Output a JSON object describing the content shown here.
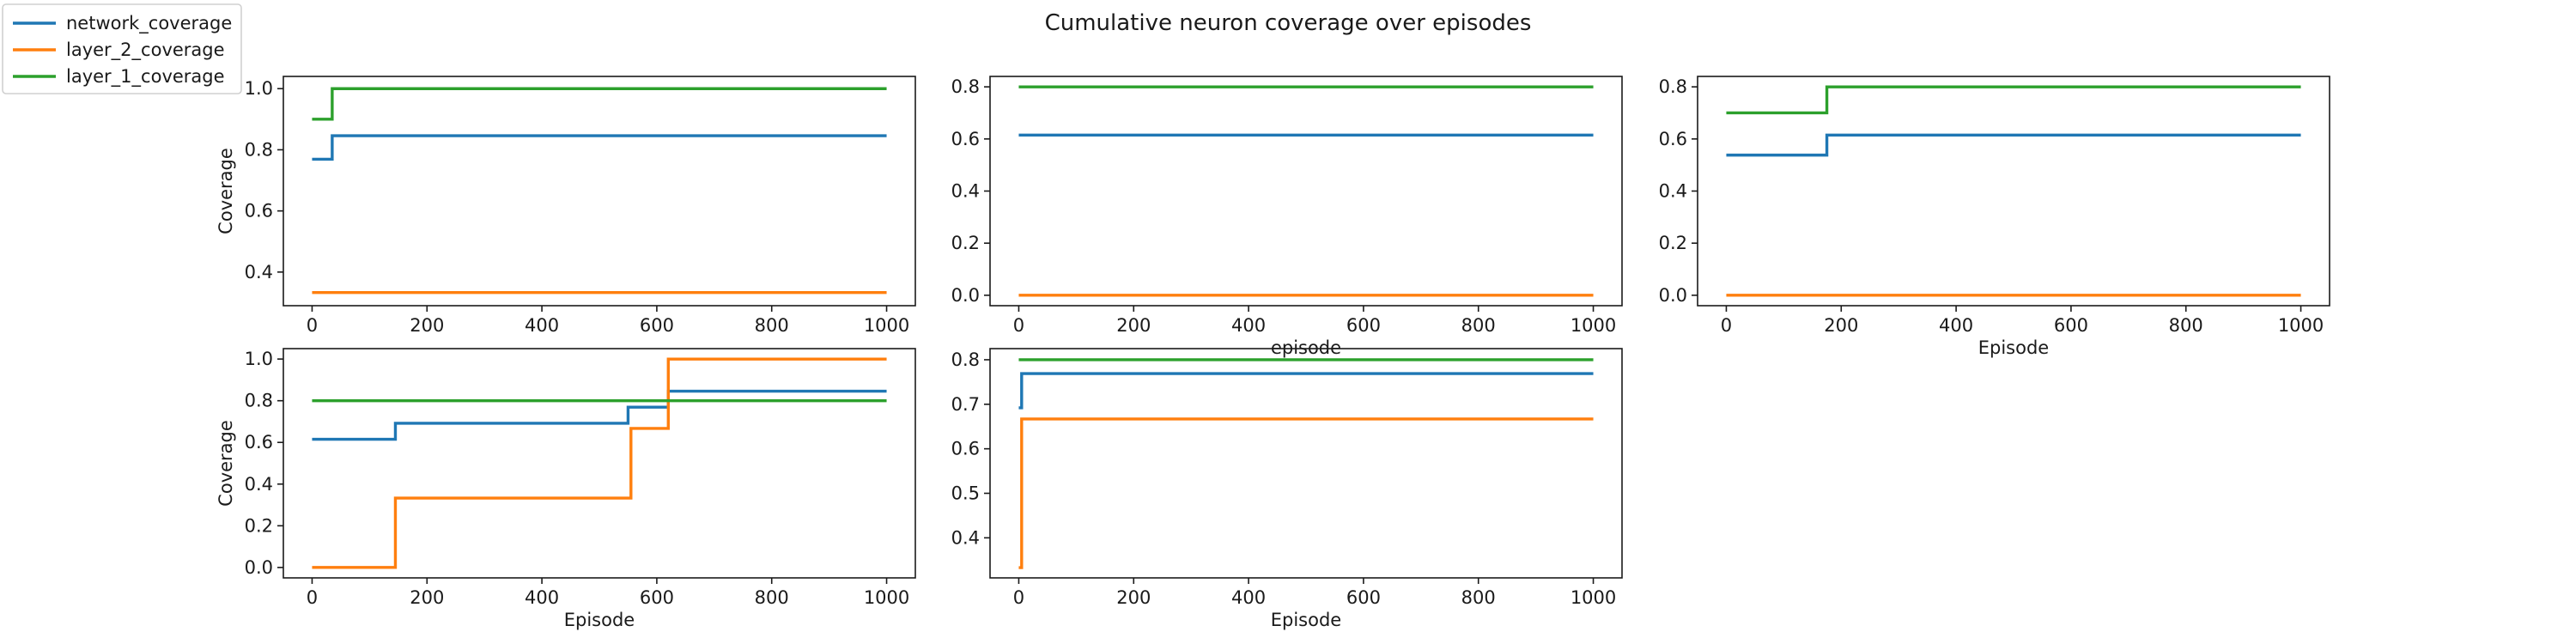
{
  "figure": {
    "title": "Cumulative neuron coverage over episodes",
    "legend": {
      "placement": "upper-left",
      "entries": [
        {
          "name": "network_coverage",
          "color": "#1f77b4"
        },
        {
          "name": "layer_2_coverage",
          "color": "#ff7f0e"
        },
        {
          "name": "layer_1_coverage",
          "color": "#2ca02c"
        }
      ]
    }
  },
  "chart_data": [
    {
      "type": "line",
      "title": "",
      "xlabel": "",
      "ylabel": "Coverage",
      "xlim": [
        -50,
        1050
      ],
      "ylim": [
        0.29,
        1.04
      ],
      "xticks": [
        0,
        200,
        400,
        600,
        800,
        1000
      ],
      "yticks": [
        0.4,
        0.6,
        0.8,
        1.0
      ],
      "ytick_labels": [
        "0.4",
        "0.6",
        "0.8",
        "1.0"
      ],
      "grid": false,
      "series": [
        {
          "name": "network_coverage",
          "color": "#1f77b4",
          "x": [
            0,
            35,
            35,
            1000
          ],
          "y": [
            0.769,
            0.769,
            0.846,
            0.846
          ]
        },
        {
          "name": "layer_2_coverage",
          "color": "#ff7f0e",
          "x": [
            0,
            1000
          ],
          "y": [
            0.333,
            0.333
          ]
        },
        {
          "name": "layer_1_coverage",
          "color": "#2ca02c",
          "x": [
            0,
            35,
            35,
            1000
          ],
          "y": [
            0.9,
            0.9,
            1.0,
            1.0
          ]
        }
      ]
    },
    {
      "type": "line",
      "title": "",
      "xlabel": "episode",
      "ylabel": "",
      "xlim": [
        -50,
        1050
      ],
      "ylim": [
        -0.04,
        0.84
      ],
      "xticks": [
        0,
        200,
        400,
        600,
        800,
        1000
      ],
      "yticks": [
        0.0,
        0.2,
        0.4,
        0.6,
        0.8
      ],
      "ytick_labels": [
        "0.0",
        "0.2",
        "0.4",
        "0.6",
        "0.8"
      ],
      "grid": false,
      "series": [
        {
          "name": "network_coverage",
          "color": "#1f77b4",
          "x": [
            0,
            1000
          ],
          "y": [
            0.615,
            0.615
          ]
        },
        {
          "name": "layer_2_coverage",
          "color": "#ff7f0e",
          "x": [
            0,
            1000
          ],
          "y": [
            0.0,
            0.0
          ]
        },
        {
          "name": "layer_1_coverage",
          "color": "#2ca02c",
          "x": [
            0,
            1000
          ],
          "y": [
            0.8,
            0.8
          ]
        }
      ]
    },
    {
      "type": "line",
      "title": "",
      "xlabel": "Episode",
      "ylabel": "",
      "xlim": [
        -50,
        1050
      ],
      "ylim": [
        -0.04,
        0.84
      ],
      "xticks": [
        0,
        200,
        400,
        600,
        800,
        1000
      ],
      "yticks": [
        0.0,
        0.2,
        0.4,
        0.6,
        0.8
      ],
      "ytick_labels": [
        "0.0",
        "0.2",
        "0.4",
        "0.6",
        "0.8"
      ],
      "grid": false,
      "series": [
        {
          "name": "network_coverage",
          "color": "#1f77b4",
          "x": [
            0,
            175,
            175,
            1000
          ],
          "y": [
            0.538,
            0.538,
            0.615,
            0.615
          ]
        },
        {
          "name": "layer_2_coverage",
          "color": "#ff7f0e",
          "x": [
            0,
            1000
          ],
          "y": [
            0.0,
            0.0
          ]
        },
        {
          "name": "layer_1_coverage",
          "color": "#2ca02c",
          "x": [
            0,
            175,
            175,
            1000
          ],
          "y": [
            0.7,
            0.7,
            0.8,
            0.8
          ]
        }
      ]
    },
    {
      "type": "line",
      "title": "",
      "xlabel": "Episode",
      "ylabel": "Coverage",
      "xlim": [
        -50,
        1050
      ],
      "ylim": [
        -0.05,
        1.05
      ],
      "xticks": [
        0,
        200,
        400,
        600,
        800,
        1000
      ],
      "yticks": [
        0.0,
        0.2,
        0.4,
        0.6,
        0.8,
        1.0
      ],
      "ytick_labels": [
        "0.0",
        "0.2",
        "0.4",
        "0.6",
        "0.8",
        "1.0"
      ],
      "grid": false,
      "series": [
        {
          "name": "network_coverage",
          "color": "#1f77b4",
          "x": [
            0,
            145,
            145,
            550,
            550,
            620,
            620,
            1000
          ],
          "y": [
            0.615,
            0.615,
            0.692,
            0.692,
            0.769,
            0.769,
            0.846,
            0.846
          ]
        },
        {
          "name": "layer_2_coverage",
          "color": "#ff7f0e",
          "x": [
            0,
            145,
            145,
            555,
            555,
            620,
            620,
            1000
          ],
          "y": [
            0.0,
            0.0,
            0.333,
            0.333,
            0.667,
            0.667,
            1.0,
            1.0
          ]
        },
        {
          "name": "layer_1_coverage",
          "color": "#2ca02c",
          "x": [
            0,
            1000
          ],
          "y": [
            0.8,
            0.8
          ]
        }
      ]
    },
    {
      "type": "line",
      "title": "",
      "xlabel": "Episode",
      "ylabel": "",
      "xlim": [
        -50,
        1050
      ],
      "ylim": [
        0.31,
        0.825
      ],
      "xticks": [
        0,
        200,
        400,
        600,
        800,
        1000
      ],
      "yticks": [
        0.4,
        0.5,
        0.6,
        0.7,
        0.8
      ],
      "ytick_labels": [
        "0.4",
        "0.5",
        "0.6",
        "0.7",
        "0.8"
      ],
      "grid": false,
      "series": [
        {
          "name": "network_coverage",
          "color": "#1f77b4",
          "x": [
            0,
            5,
            5,
            1000
          ],
          "y": [
            0.692,
            0.692,
            0.769,
            0.769
          ]
        },
        {
          "name": "layer_2_coverage",
          "color": "#ff7f0e",
          "x": [
            0,
            5,
            5,
            1000
          ],
          "y": [
            0.333,
            0.333,
            0.667,
            0.667
          ]
        },
        {
          "name": "layer_1_coverage",
          "color": "#2ca02c",
          "x": [
            0,
            1000
          ],
          "y": [
            0.8,
            0.8
          ]
        }
      ]
    }
  ]
}
